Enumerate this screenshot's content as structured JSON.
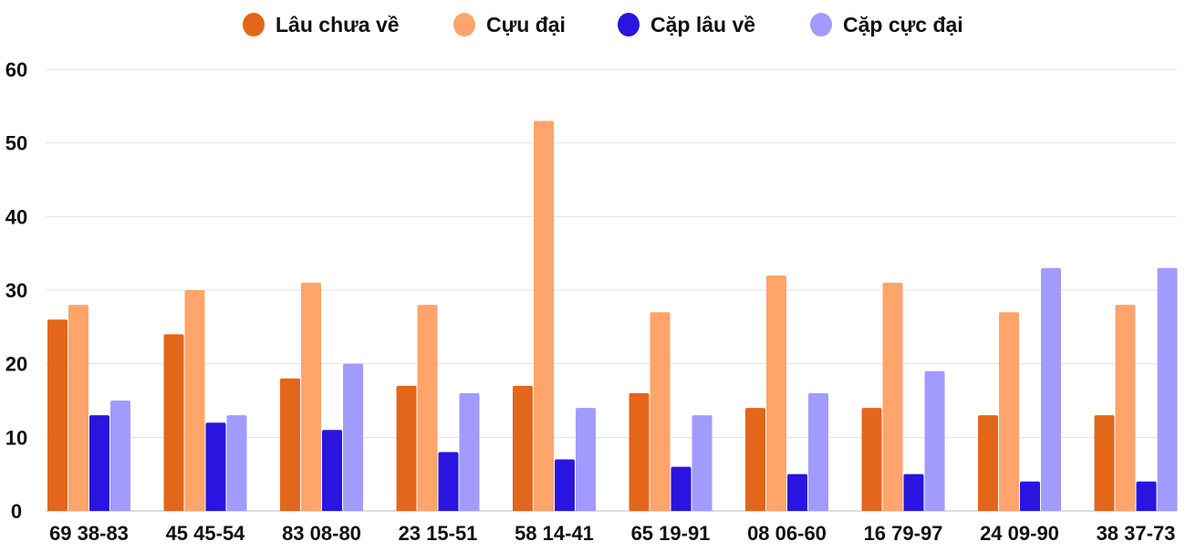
{
  "chart_data": {
    "type": "bar",
    "title": "",
    "xlabel": "",
    "ylabel": "",
    "ylim": [
      0,
      60
    ],
    "yticks": [
      0,
      10,
      20,
      30,
      40,
      50,
      60
    ],
    "grid": true,
    "legend_position": "top",
    "categories": [
      "69 38-83",
      "45 45-54",
      "83 08-80",
      "23 15-51",
      "58 14-41",
      "65 19-91",
      "08 06-60",
      "16 79-97",
      "24 09-90",
      "38 37-73"
    ],
    "series": [
      {
        "name": "Lâu chưa về",
        "color": "#e3661a",
        "values": [
          26,
          24,
          18,
          17,
          17,
          16,
          14,
          14,
          13,
          13
        ]
      },
      {
        "name": "Cựu đại",
        "color": "#ffa46b",
        "values": [
          28,
          30,
          31,
          28,
          53,
          27,
          32,
          31,
          27,
          28
        ]
      },
      {
        "name": "Cặp lâu về",
        "color": "#2a14e0",
        "values": [
          13,
          12,
          11,
          8,
          7,
          6,
          5,
          5,
          4,
          4
        ]
      },
      {
        "name": "Cặp cực đại",
        "color": "#a29bfe",
        "values": [
          15,
          13,
          20,
          16,
          14,
          13,
          16,
          19,
          33,
          33
        ]
      }
    ]
  }
}
